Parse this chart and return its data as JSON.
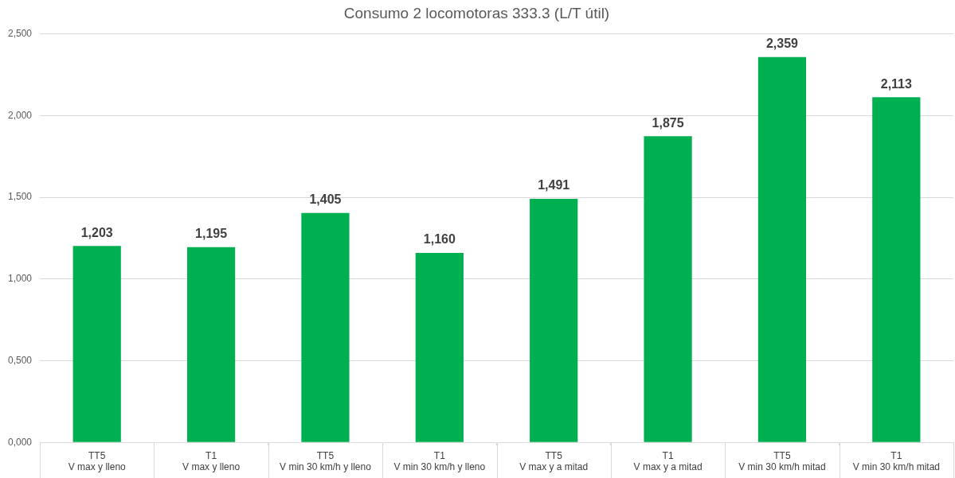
{
  "chart_data": {
    "type": "bar",
    "title": "Consumo 2 locomotoras 333.3 (L/T útil)",
    "categories": [
      "TT5\nV max y lleno",
      "T1\nV max y lleno",
      "TT5\nV min 30 km/h y lleno",
      "T1\nV min 30 km/h y lleno",
      "TT5\nV max y a mitad",
      "T1\nV max y a mitad",
      "TT5\nV min 30 km/h mitad",
      "T1\nV min 30 km/h mitad"
    ],
    "values": [
      1.203,
      1.195,
      1.405,
      1.16,
      1.491,
      1.875,
      2.359,
      2.113
    ],
    "value_labels": [
      "1,203",
      "1,195",
      "1,405",
      "1,160",
      "1,491",
      "1,875",
      "2,359",
      "2,113"
    ],
    "color": "#00b050",
    "ylim": [
      0,
      2.5
    ],
    "yticks": [
      {
        "value": 0,
        "label": "0,000"
      },
      {
        "value": 0.5,
        "label": "0,500"
      },
      {
        "value": 1,
        "label": "1,000"
      },
      {
        "value": 1.5,
        "label": "1,500"
      },
      {
        "value": 2,
        "label": "2,000"
      },
      {
        "value": 2.5,
        "label": "2,500"
      }
    ],
    "grid": "y",
    "legend": false
  }
}
